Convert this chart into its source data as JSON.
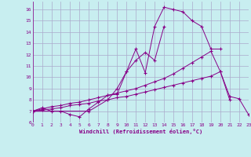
{
  "xlabel": "Windchill (Refroidissement éolien,°C)",
  "bg_color": "#c8eef0",
  "grid_color": "#aaaacc",
  "line_color": "#880088",
  "xlim": [
    0,
    23
  ],
  "ylim": [
    6.0,
    16.7
  ],
  "yticks": [
    6,
    7,
    8,
    9,
    10,
    11,
    12,
    13,
    14,
    15,
    16
  ],
  "xticks": [
    0,
    1,
    2,
    3,
    4,
    5,
    6,
    7,
    8,
    9,
    10,
    11,
    12,
    13,
    14,
    15,
    16,
    17,
    18,
    19,
    20,
    21,
    22,
    23
  ],
  "series": [
    {
      "x": [
        0,
        1,
        2,
        3,
        4,
        5,
        6,
        7,
        8,
        9,
        10,
        11,
        12,
        13,
        14,
        15,
        16,
        17,
        18,
        19,
        20
      ],
      "y": [
        7.0,
        7.3,
        7.0,
        7.0,
        6.7,
        6.5,
        7.2,
        7.8,
        8.4,
        8.5,
        10.5,
        12.5,
        10.4,
        14.5,
        16.2,
        16.0,
        15.8,
        15.0,
        14.5,
        12.5,
        12.5
      ]
    },
    {
      "x": [
        0,
        6,
        8,
        9,
        10,
        11,
        12,
        13,
        14
      ],
      "y": [
        7.0,
        7.0,
        8.0,
        9.0,
        10.5,
        11.5,
        12.2,
        11.5,
        14.5
      ]
    },
    {
      "x": [
        0,
        1,
        2,
        3,
        4,
        5,
        6,
        7,
        8,
        9,
        10,
        11,
        12,
        13,
        14,
        15,
        16,
        17,
        18,
        19,
        20,
        21,
        22,
        23
      ],
      "y": [
        7.0,
        7.2,
        7.4,
        7.5,
        7.7,
        7.8,
        8.0,
        8.2,
        8.4,
        8.6,
        8.8,
        9.0,
        9.3,
        9.6,
        9.9,
        10.3,
        10.8,
        11.3,
        11.8,
        12.3,
        10.5,
        8.3,
        8.1,
        6.7
      ]
    },
    {
      "x": [
        0,
        1,
        2,
        3,
        4,
        5,
        6,
        7,
        8,
        9,
        10,
        11,
        12,
        13,
        14,
        15,
        16,
        17,
        18,
        19,
        20,
        21
      ],
      "y": [
        7.0,
        7.1,
        7.2,
        7.3,
        7.5,
        7.6,
        7.7,
        7.9,
        8.0,
        8.2,
        8.3,
        8.5,
        8.7,
        8.9,
        9.1,
        9.3,
        9.5,
        9.7,
        9.9,
        10.1,
        10.5,
        8.0
      ]
    }
  ]
}
